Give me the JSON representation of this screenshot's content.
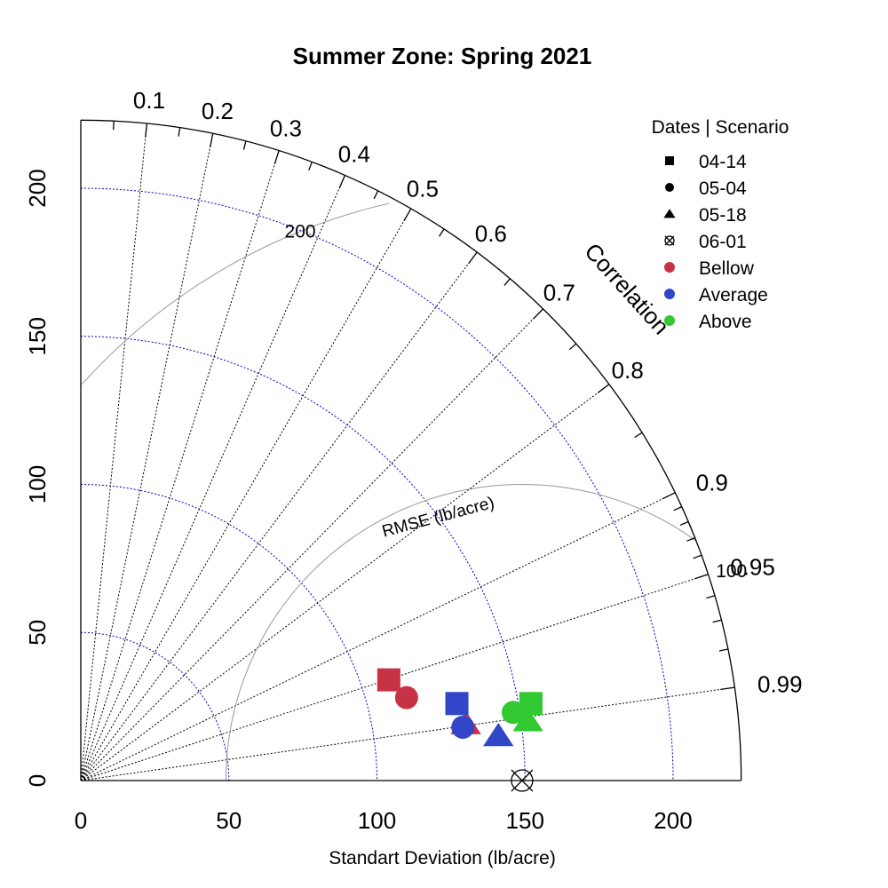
{
  "chart_data": {
    "type": "scatter",
    "subtype": "taylor-diagram",
    "title": "Summer Zone: Spring 2021",
    "xlabel": "Standart Deviation (lb/acre)",
    "correlation_label": "Correlation",
    "rmse_label": "RMSE (lb/acre)",
    "sd_ticks": [
      0,
      50,
      100,
      150,
      200
    ],
    "sd_max": 223,
    "sd_circles": [
      50,
      100,
      150,
      200
    ],
    "correlation_ticks": [
      "0.1",
      "0.2",
      "0.3",
      "0.4",
      "0.5",
      "0.6",
      "0.7",
      "0.8",
      "0.9",
      "0.95",
      "0.99"
    ],
    "correlation_lines": [
      0.1,
      0.2,
      0.3,
      0.4,
      0.5,
      0.6,
      0.7,
      0.8,
      0.9,
      0.95,
      0.99
    ],
    "rmse_contours": [
      {
        "value": 100,
        "label": "100"
      },
      {
        "value": 200,
        "label": "200"
      }
    ],
    "reference": {
      "sd": 149,
      "label": "06-01"
    },
    "legend": {
      "title": "Dates | Scenario",
      "position": "top-right",
      "shapes": [
        {
          "label": "04-14",
          "shape": "square"
        },
        {
          "label": "05-04",
          "shape": "circle"
        },
        {
          "label": "05-18",
          "shape": "triangle"
        },
        {
          "label": "06-01",
          "shape": "reference"
        }
      ],
      "scenarios": [
        {
          "label": "Bellow",
          "color": "#c83246"
        },
        {
          "label": "Average",
          "color": "#3246c8"
        },
        {
          "label": "Above",
          "color": "#32c832"
        }
      ]
    },
    "series": [
      {
        "name": "Bellow",
        "color": "#c83246",
        "points": [
          {
            "date": "04-14",
            "shape": "square",
            "x": 104,
            "y": 34
          },
          {
            "date": "05-04",
            "shape": "circle",
            "x": 110,
            "y": 28
          },
          {
            "date": "05-18",
            "shape": "triangle",
            "x": 130,
            "y": 19
          }
        ]
      },
      {
        "name": "Average",
        "color": "#3246c8",
        "points": [
          {
            "date": "04-14",
            "shape": "square",
            "x": 127,
            "y": 26
          },
          {
            "date": "05-04",
            "shape": "circle",
            "x": 129,
            "y": 18
          },
          {
            "date": "05-18",
            "shape": "triangle",
            "x": 141,
            "y": 15
          }
        ]
      },
      {
        "name": "Above",
        "color": "#32c832",
        "points": [
          {
            "date": "04-14",
            "shape": "square",
            "x": 152,
            "y": 26
          },
          {
            "date": "05-04",
            "shape": "circle",
            "x": 146,
            "y": 23
          },
          {
            "date": "05-18",
            "shape": "triangle",
            "x": 151,
            "y": 20
          }
        ]
      }
    ]
  }
}
